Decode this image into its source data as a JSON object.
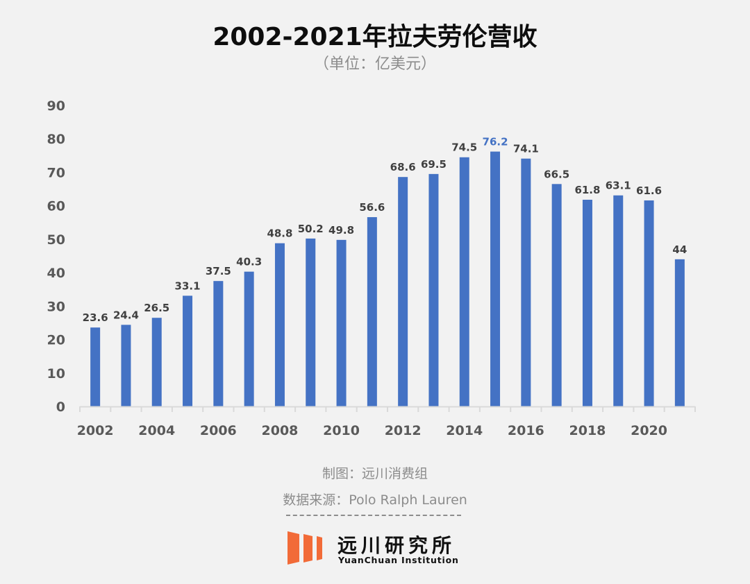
{
  "chart_data": {
    "type": "bar",
    "title": "2002-2021年拉夫劳伦营收",
    "subtitle": "（单位：亿美元）",
    "xlabel": "",
    "ylabel": "",
    "ylim": [
      0,
      90
    ],
    "yticks": [
      "0",
      "10",
      "20",
      "30",
      "40",
      "50",
      "60",
      "70",
      "80",
      "90"
    ],
    "categories": [
      "2002",
      "2003",
      "2004",
      "2005",
      "2006",
      "2007",
      "2008",
      "2009",
      "2010",
      "2011",
      "2012",
      "2013",
      "2014",
      "2015",
      "2016",
      "2017",
      "2018",
      "2019",
      "2020",
      "2021"
    ],
    "xtick_labels": [
      "2002",
      "",
      "2004",
      "",
      "2006",
      "",
      "2008",
      "",
      "2010",
      "",
      "2012",
      "",
      "2014",
      "",
      "2016",
      "",
      "2018",
      "",
      "2020",
      ""
    ],
    "values": [
      23.6,
      24.4,
      26.5,
      33.1,
      37.5,
      40.3,
      48.8,
      50.2,
      49.8,
      56.6,
      68.6,
      69.5,
      74.5,
      76.2,
      74.1,
      66.5,
      61.8,
      63.1,
      61.6,
      44
    ],
    "data_labels": [
      "23.6",
      "24.4",
      "26.5",
      "33.1",
      "37.5",
      "40.3",
      "48.8",
      "50.2",
      "49.8",
      "56.6",
      "68.6",
      "69.5",
      "74.5",
      "76.2",
      "74.1",
      "66.5",
      "61.8",
      "63.1",
      "61.6",
      "44"
    ],
    "highlight_index": 13,
    "grid": false,
    "colors": {
      "bar": "#4472c4",
      "label": "#404040",
      "highlight_label": "#4472c4",
      "axis": "#d9d9d9",
      "tick_text": "#595959"
    }
  },
  "footer": {
    "made_by": "制图：远川消费组",
    "source": "数据来源：Polo Ralph Lauren"
  },
  "logo": {
    "name_cn": "远川研究所",
    "name_en": "YuanChuan Institution",
    "color": "#f26b38"
  }
}
